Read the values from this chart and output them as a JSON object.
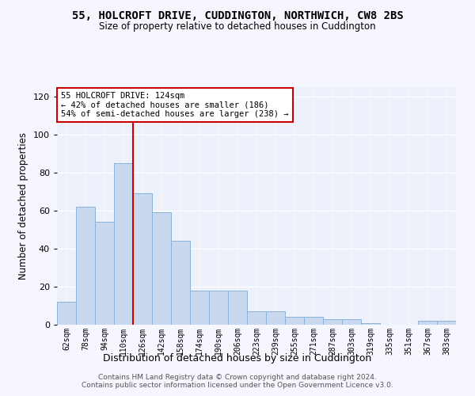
{
  "title": "55, HOLCROFT DRIVE, CUDDINGTON, NORTHWICH, CW8 2BS",
  "subtitle": "Size of property relative to detached houses in Cuddington",
  "xlabel": "Distribution of detached houses by size in Cuddington",
  "ylabel": "Number of detached properties",
  "bin_labels": [
    "62sqm",
    "78sqm",
    "94sqm",
    "110sqm",
    "126sqm",
    "142sqm",
    "158sqm",
    "174sqm",
    "190sqm",
    "206sqm",
    "223sqm",
    "239sqm",
    "255sqm",
    "271sqm",
    "287sqm",
    "303sqm",
    "319sqm",
    "335sqm",
    "351sqm",
    "367sqm",
    "383sqm"
  ],
  "bar_values": [
    12,
    62,
    54,
    85,
    69,
    59,
    44,
    18,
    18,
    18,
    7,
    7,
    4,
    4,
    3,
    3,
    1,
    0,
    0,
    2,
    2
  ],
  "bar_color": "#c8d9ef",
  "bar_edge_color": "#8ab4d8",
  "vline_color": "#cc0000",
  "annotation_text1": "55 HOLCROFT DRIVE: 124sqm",
  "annotation_text2": "← 42% of detached houses are smaller (186)",
  "annotation_text3": "54% of semi-detached houses are larger (238) →",
  "annotation_box_color": "#ffffff",
  "annotation_box_edge": "#cc0000",
  "ylim": [
    0,
    125
  ],
  "yticks": [
    0,
    20,
    40,
    60,
    80,
    100,
    120
  ],
  "bg_color": "#edf1fb",
  "fig_bg_color": "#f5f6fe",
  "footer1": "Contains HM Land Registry data © Crown copyright and database right 2024.",
  "footer2": "Contains public sector information licensed under the Open Government Licence v3.0."
}
